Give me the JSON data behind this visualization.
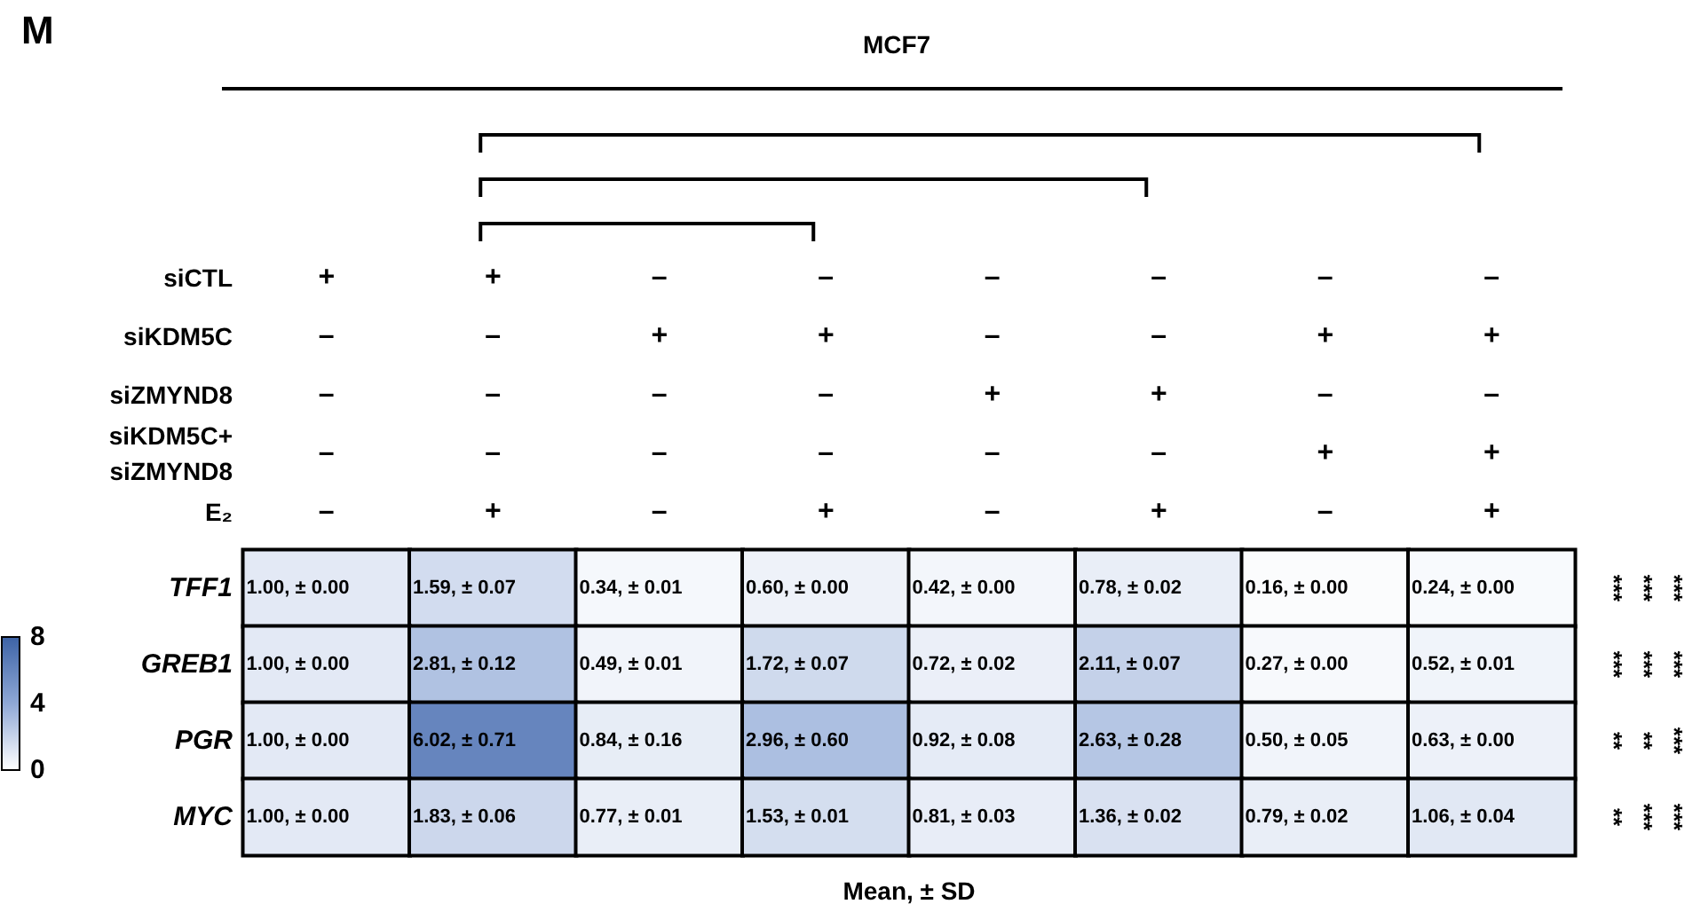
{
  "chart_data": {
    "type": "heatmap",
    "title": "MCF7",
    "xlabel": "Mean, ± SD",
    "categories": [
      "+\n–\n–\n–\n–",
      "+\n–\n–\n–\n+",
      "–\n+\n–\n–\n–",
      "–\n+\n–\n–\n+",
      "–\n–\n+\n–\n–",
      "–\n–\n+\n–\n+",
      "–\n+\n–\n+\n–",
      "–\n+\n–\n+\n+"
    ],
    "y_categories": [
      "TFF1",
      "GREB1",
      "PGR",
      "MYC"
    ],
    "cells": [
      [
        1.0,
        1.59,
        0.34,
        0.6,
        0.42,
        0.78,
        0.16,
        0.24
      ],
      [
        1.0,
        2.81,
        0.49,
        1.72,
        0.72,
        2.11,
        0.27,
        0.52
      ],
      [
        1.0,
        6.02,
        0.84,
        2.96,
        0.92,
        2.63,
        0.5,
        0.63
      ],
      [
        1.0,
        1.83,
        0.77,
        1.53,
        0.81,
        1.36,
        0.79,
        1.06
      ]
    ],
    "cell_labels": [
      [
        "1.00, ± 0.00",
        "1.59, ± 0.07",
        "0.34, ± 0.01",
        "0.60, ± 0.00",
        "0.42, ± 0.00",
        "0.78, ± 0.02",
        "0.16, ± 0.00",
        "0.24, ± 0.00"
      ],
      [
        "1.00, ± 0.00",
        "2.81, ± 0.12",
        "0.49, ± 0.01",
        "1.72, ± 0.07",
        "0.72, ± 0.02",
        "2.11, ± 0.07",
        "0.27, ± 0.00",
        "0.52, ± 0.01"
      ],
      [
        "1.00, ± 0.00",
        "6.02, ± 0.71",
        "0.84, ± 0.16",
        "2.96, ± 0.60",
        "0.92, ± 0.08",
        "2.63, ± 0.28",
        "0.50, ± 0.05",
        "0.63, ± 0.00"
      ],
      [
        "1.00, ± 0.00",
        "1.83, ± 0.06",
        "0.77, ± 0.01",
        "1.53, ± 0.01",
        "0.81, ± 0.03",
        "1.36, ± 0.02",
        "0.79, ± 0.02",
        "1.06, ± 0.04"
      ]
    ],
    "clim": [
      0,
      8
    ],
    "cticks": [
      0,
      4,
      8
    ],
    "annotations": [
      "M",
      "siCTL",
      "siKDM5C",
      "siZMYND8",
      "siKDM5C+\nsiZMYND8",
      "E₂",
      "***",
      "***",
      "***",
      "***",
      "***",
      "***",
      "**",
      "**",
      "***",
      "**",
      "***",
      "***"
    ]
  }
}
